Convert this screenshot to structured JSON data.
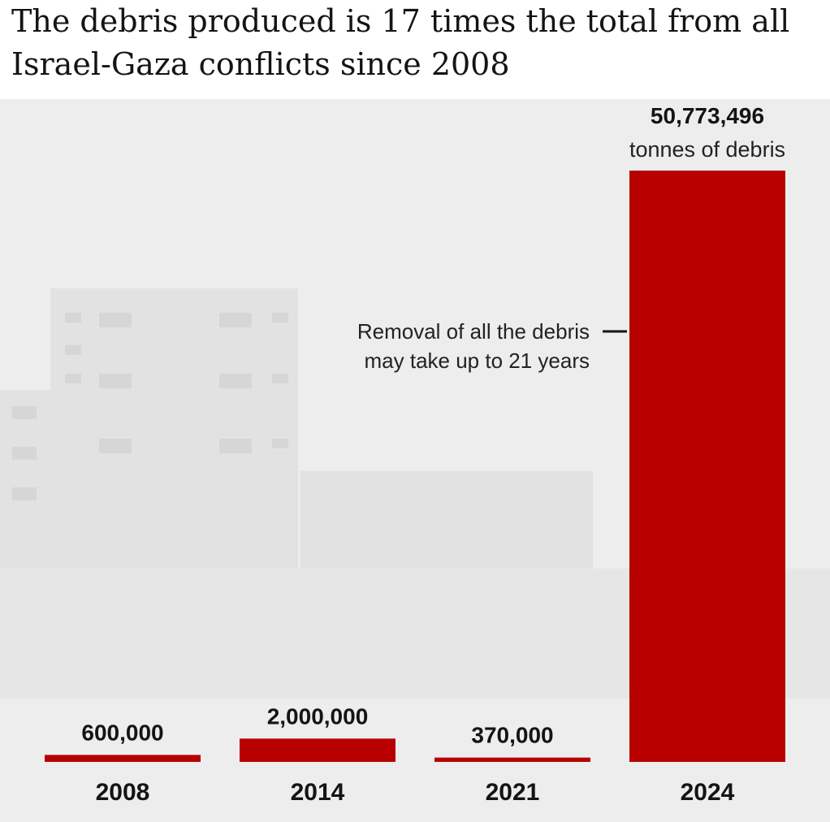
{
  "chart_data": {
    "type": "bar",
    "title": "The debris produced is 17 times the total from all Israel-Gaza conflicts since 2008",
    "categories": [
      "2008",
      "2014",
      "2021",
      "2024"
    ],
    "values": [
      600000,
      2000000,
      370000,
      50773496
    ],
    "value_labels": [
      "600,000",
      "2,000,000",
      "370,000",
      "50,773,496"
    ],
    "value_unit": "tonnes of debris",
    "annotation": "Removal of all the debris may take up to 21 years",
    "color": "#b80000"
  }
}
